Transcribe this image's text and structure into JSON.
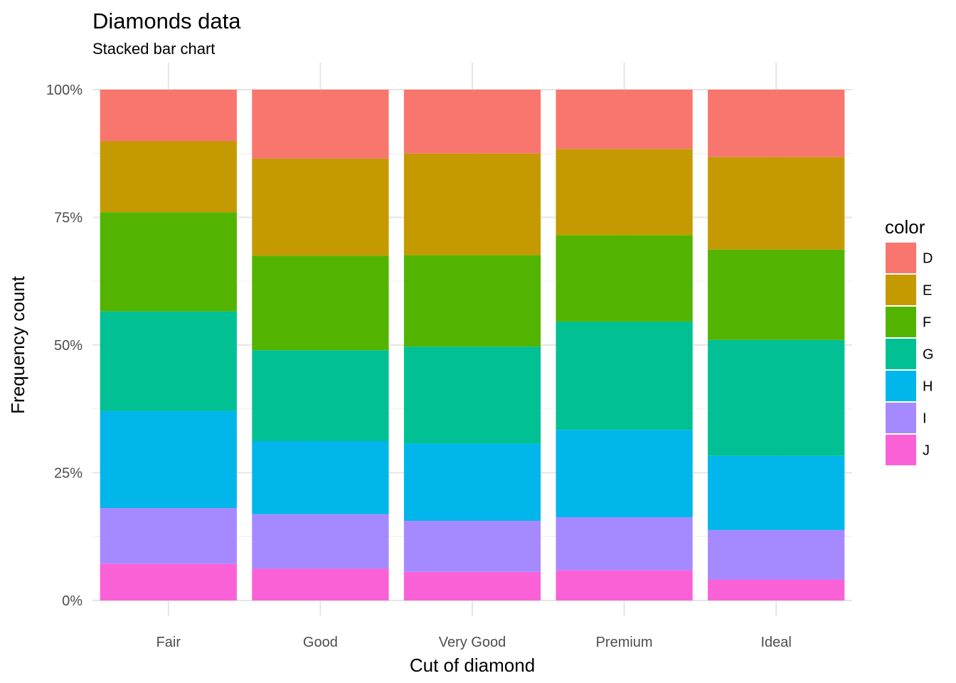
{
  "chart_data": {
    "type": "bar",
    "stacked": true,
    "normalized": true,
    "title": "Diamonds data",
    "subtitle": "Stacked bar chart",
    "xlabel": "Cut of diamond",
    "ylabel": "Frequency count",
    "categories": [
      "Fair",
      "Good",
      "Very Good",
      "Premium",
      "Ideal"
    ],
    "ylim": [
      0,
      1
    ],
    "y_ticks": [
      0,
      0.25,
      0.5,
      0.75,
      1
    ],
    "y_tick_labels": [
      "0%",
      "25%",
      "50%",
      "75%",
      "100%"
    ],
    "grid": true,
    "legend_position": "right",
    "legend_title": "color",
    "series": [
      {
        "name": "D",
        "color": "#F8766D",
        "values": [
          0.101,
          0.135,
          0.125,
          0.116,
          0.132
        ]
      },
      {
        "name": "E",
        "color": "#C49A00",
        "values": [
          0.139,
          0.19,
          0.199,
          0.169,
          0.181
        ]
      },
      {
        "name": "F",
        "color": "#53B400",
        "values": [
          0.194,
          0.185,
          0.179,
          0.169,
          0.177
        ]
      },
      {
        "name": "G",
        "color": "#00C094",
        "values": [
          0.195,
          0.178,
          0.19,
          0.212,
          0.227
        ]
      },
      {
        "name": "H",
        "color": "#00B6EB",
        "values": [
          0.19,
          0.143,
          0.151,
          0.171,
          0.145
        ]
      },
      {
        "name": "I",
        "color": "#A58AFF",
        "values": [
          0.109,
          0.107,
          0.1,
          0.104,
          0.097
        ]
      },
      {
        "name": "J",
        "color": "#FB61D7",
        "values": [
          0.072,
          0.062,
          0.056,
          0.059,
          0.041
        ]
      }
    ]
  }
}
